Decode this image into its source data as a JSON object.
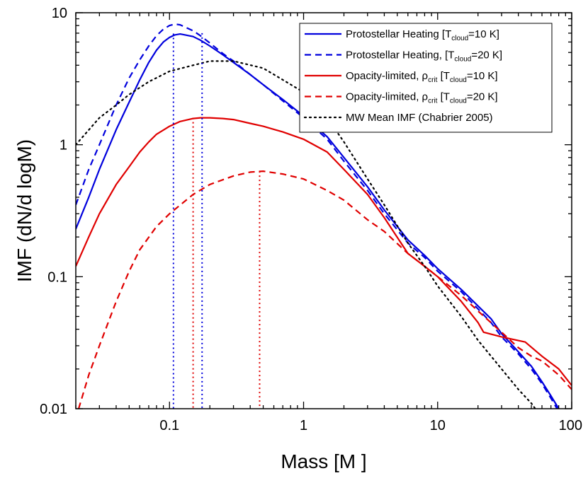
{
  "chart_data": {
    "type": "line",
    "title": "",
    "xlabel": "Mass [M ]",
    "ylabel": "IMF (dN/d logM)",
    "xscale": "log",
    "yscale": "log",
    "xlim": [
      0.02,
      100
    ],
    "ylim": [
      0.01,
      10
    ],
    "x_ticks": [
      {
        "value": 0.1,
        "label": "0.1"
      },
      {
        "value": 1,
        "label": "1"
      },
      {
        "value": 10,
        "label": "10"
      },
      {
        "value": 100,
        "label": "100"
      }
    ],
    "y_ticks": [
      {
        "value": 0.01,
        "label": "0.01"
      },
      {
        "value": 0.1,
        "label": "0.1"
      },
      {
        "value": 1,
        "label": "1"
      },
      {
        "value": 10,
        "label": "10"
      }
    ],
    "legend_position": "top-right",
    "series": [
      {
        "legend_label": "Protostellar Heating [T_cloud=10 K]",
        "legend_main": "Protostellar Heating [T",
        "legend_sub": "cloud",
        "legend_tail": "=10 K]",
        "color": "#0000dd",
        "dash": "solid",
        "points": [
          [
            0.02,
            0.23
          ],
          [
            0.025,
            0.4
          ],
          [
            0.03,
            0.65
          ],
          [
            0.04,
            1.3
          ],
          [
            0.05,
            2.1
          ],
          [
            0.06,
            3.1
          ],
          [
            0.07,
            4.2
          ],
          [
            0.08,
            5.2
          ],
          [
            0.09,
            6.0
          ],
          [
            0.1,
            6.5
          ],
          [
            0.11,
            6.8
          ],
          [
            0.12,
            6.9
          ],
          [
            0.13,
            6.8
          ],
          [
            0.15,
            6.6
          ],
          [
            0.17,
            6.2
          ],
          [
            0.2,
            5.6
          ],
          [
            0.25,
            4.8
          ],
          [
            0.3,
            4.2
          ],
          [
            0.4,
            3.4
          ],
          [
            0.5,
            2.85
          ],
          [
            0.7,
            2.2
          ],
          [
            1,
            1.65
          ],
          [
            1.5,
            1.15
          ],
          [
            2,
            0.8
          ],
          [
            3,
            0.48
          ],
          [
            4,
            0.32
          ],
          [
            6,
            0.19
          ],
          [
            8,
            0.145
          ],
          [
            10,
            0.115
          ],
          [
            15,
            0.08
          ],
          [
            20,
            0.06
          ],
          [
            25,
            0.048
          ],
          [
            30,
            0.037
          ],
          [
            40,
            0.027
          ],
          [
            50,
            0.021
          ],
          [
            60,
            0.016
          ],
          [
            70,
            0.0125
          ],
          [
            80,
            0.01
          ]
        ]
      },
      {
        "legend_label": "Protostellar Heating, [T_cloud=20 K]",
        "legend_main": "Protostellar Heating, [T",
        "legend_sub": "cloud",
        "legend_tail": "=20 K]",
        "color": "#0000dd",
        "dash": "dashed",
        "points": [
          [
            0.02,
            0.35
          ],
          [
            0.025,
            0.65
          ],
          [
            0.03,
            1.0
          ],
          [
            0.04,
            2.0
          ],
          [
            0.05,
            3.2
          ],
          [
            0.06,
            4.4
          ],
          [
            0.07,
            5.6
          ],
          [
            0.08,
            6.7
          ],
          [
            0.09,
            7.5
          ],
          [
            0.1,
            8.0
          ],
          [
            0.11,
            8.2
          ],
          [
            0.12,
            8.1
          ],
          [
            0.13,
            7.8
          ],
          [
            0.15,
            7.3
          ],
          [
            0.17,
            6.7
          ],
          [
            0.2,
            5.9
          ],
          [
            0.25,
            4.9
          ],
          [
            0.3,
            4.3
          ],
          [
            0.4,
            3.4
          ],
          [
            0.5,
            2.85
          ],
          [
            0.7,
            2.15
          ],
          [
            1,
            1.6
          ],
          [
            1.5,
            1.1
          ],
          [
            2,
            0.75
          ],
          [
            3,
            0.45
          ],
          [
            4,
            0.3
          ],
          [
            6,
            0.18
          ],
          [
            8,
            0.14
          ],
          [
            10,
            0.11
          ],
          [
            15,
            0.077
          ],
          [
            20,
            0.057
          ],
          [
            25,
            0.045
          ],
          [
            30,
            0.035
          ],
          [
            40,
            0.026
          ],
          [
            50,
            0.02
          ],
          [
            60,
            0.0155
          ],
          [
            70,
            0.012
          ],
          [
            80,
            0.0095
          ]
        ]
      },
      {
        "legend_label": "Opacity-limited, ρ_crit [T_cloud=10 K]",
        "legend_main": "Opacity-limited, ρ",
        "legend_sub1": "crit",
        "legend_mid": " [T",
        "legend_sub": "cloud",
        "legend_tail": "=10 K]",
        "color": "#e00000",
        "dash": "solid",
        "points": [
          [
            0.02,
            0.12
          ],
          [
            0.025,
            0.2
          ],
          [
            0.03,
            0.3
          ],
          [
            0.04,
            0.5
          ],
          [
            0.05,
            0.68
          ],
          [
            0.06,
            0.88
          ],
          [
            0.07,
            1.05
          ],
          [
            0.08,
            1.2
          ],
          [
            0.1,
            1.38
          ],
          [
            0.12,
            1.5
          ],
          [
            0.15,
            1.58
          ],
          [
            0.17,
            1.6
          ],
          [
            0.2,
            1.6
          ],
          [
            0.25,
            1.58
          ],
          [
            0.3,
            1.55
          ],
          [
            0.4,
            1.45
          ],
          [
            0.5,
            1.38
          ],
          [
            0.7,
            1.25
          ],
          [
            1,
            1.1
          ],
          [
            1.5,
            0.88
          ],
          [
            2,
            0.65
          ],
          [
            3,
            0.42
          ],
          [
            4,
            0.28
          ],
          [
            6,
            0.15
          ],
          [
            8,
            0.12
          ],
          [
            10,
            0.1
          ],
          [
            15,
            0.065
          ],
          [
            20,
            0.045
          ],
          [
            22,
            0.038
          ],
          [
            30,
            0.035
          ],
          [
            45,
            0.032
          ],
          [
            60,
            0.025
          ],
          [
            80,
            0.02
          ],
          [
            100,
            0.015
          ]
        ]
      },
      {
        "legend_label": "Opacity-limited, ρ_crit [T_cloud=20 K]",
        "legend_main": "Opacity-limited, ρ",
        "legend_sub1": "crit",
        "legend_mid": "  [T",
        "legend_sub": "cloud",
        "legend_tail": "=20 K]",
        "color": "#e00000",
        "dash": "dashed",
        "points": [
          [
            0.021,
            0.01
          ],
          [
            0.025,
            0.018
          ],
          [
            0.03,
            0.03
          ],
          [
            0.04,
            0.065
          ],
          [
            0.05,
            0.11
          ],
          [
            0.06,
            0.16
          ],
          [
            0.08,
            0.24
          ],
          [
            0.1,
            0.3
          ],
          [
            0.15,
            0.42
          ],
          [
            0.2,
            0.5
          ],
          [
            0.3,
            0.58
          ],
          [
            0.4,
            0.62
          ],
          [
            0.5,
            0.63
          ],
          [
            0.7,
            0.6
          ],
          [
            1,
            0.55
          ],
          [
            1.5,
            0.45
          ],
          [
            2,
            0.38
          ],
          [
            3,
            0.27
          ],
          [
            4,
            0.22
          ],
          [
            6,
            0.15
          ],
          [
            8,
            0.12
          ],
          [
            10,
            0.1
          ],
          [
            15,
            0.072
          ],
          [
            20,
            0.055
          ],
          [
            30,
            0.038
          ],
          [
            40,
            0.029
          ],
          [
            50,
            0.025
          ],
          [
            60,
            0.023
          ],
          [
            80,
            0.018
          ],
          [
            100,
            0.014
          ]
        ]
      },
      {
        "legend_label": "MW Mean IMF (Chabrier 2005)",
        "legend_main": "MW Mean IMF (Chabrier 2005)",
        "color": "#000000",
        "dash": "dotted",
        "points": [
          [
            0.02,
            1.0
          ],
          [
            0.03,
            1.6
          ],
          [
            0.04,
            2.0
          ],
          [
            0.05,
            2.4
          ],
          [
            0.07,
            3.0
          ],
          [
            0.1,
            3.6
          ],
          [
            0.15,
            4.0
          ],
          [
            0.2,
            4.3
          ],
          [
            0.3,
            4.3
          ],
          [
            0.5,
            3.8
          ],
          [
            0.7,
            3.1
          ],
          [
            1,
            2.5
          ],
          [
            1.5,
            1.6
          ],
          [
            2,
            1.05
          ],
          [
            3,
            0.55
          ],
          [
            4,
            0.35
          ],
          [
            6,
            0.18
          ],
          [
            8,
            0.12
          ],
          [
            10,
            0.085
          ],
          [
            15,
            0.05
          ],
          [
            20,
            0.033
          ],
          [
            30,
            0.02
          ],
          [
            40,
            0.014
          ],
          [
            50,
            0.011
          ],
          [
            60,
            0.0085
          ]
        ]
      }
    ],
    "peak_markers": [
      {
        "x": 0.107,
        "y": 6.95,
        "color": "#0000dd"
      },
      {
        "x": 0.175,
        "y": 7.0,
        "color": "#0000dd"
      },
      {
        "x": 0.15,
        "y": 1.6,
        "color": "#e00000"
      },
      {
        "x": 0.47,
        "y": 0.63,
        "color": "#e00000"
      }
    ]
  }
}
